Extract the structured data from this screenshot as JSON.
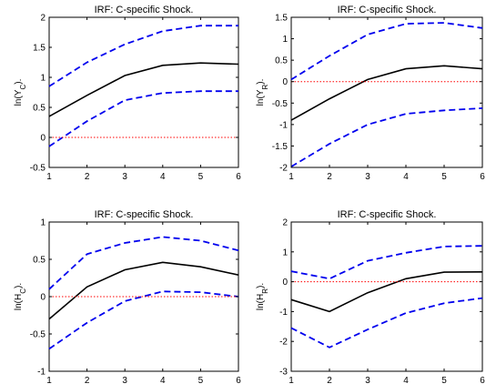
{
  "chart_data": [
    {
      "type": "line",
      "title": "IRF:  C-specific Shock.",
      "ylabel": "ln(Y_C).",
      "ylabel_base": "ln(Y",
      "ylabel_sub": "C",
      "ylabel_tail": ").",
      "x": [
        1,
        2,
        3,
        4,
        5,
        6
      ],
      "xlim": [
        1,
        6
      ],
      "ylim": [
        -0.5,
        2
      ],
      "xticks": [
        "1",
        "2",
        "3",
        "4",
        "5",
        "6"
      ],
      "yticks": [
        "-0.5",
        "0",
        "0.5",
        "1",
        "1.5",
        "2"
      ],
      "ytick_values": [
        -0.5,
        0,
        0.5,
        1,
        1.5,
        2
      ],
      "series": [
        {
          "role": "upper",
          "values": [
            0.85,
            1.25,
            1.55,
            1.77,
            1.86,
            1.86
          ]
        },
        {
          "role": "median",
          "values": [
            0.35,
            0.7,
            1.03,
            1.2,
            1.24,
            1.22
          ]
        },
        {
          "role": "lower",
          "values": [
            -0.15,
            0.27,
            0.62,
            0.74,
            0.77,
            0.77
          ]
        },
        {
          "role": "zero",
          "values": [
            0,
            0,
            0,
            0,
            0,
            0
          ]
        }
      ]
    },
    {
      "type": "line",
      "title": "IRF:  C-specific Shock.",
      "ylabel": "ln(Y_R).",
      "ylabel_base": "ln(Y",
      "ylabel_sub": "R",
      "ylabel_tail": ").",
      "x": [
        1,
        2,
        3,
        4,
        5,
        6
      ],
      "xlim": [
        1,
        6
      ],
      "ylim": [
        -2,
        1.5
      ],
      "xticks": [
        "1",
        "2",
        "3",
        "4",
        "5",
        "6"
      ],
      "yticks": [
        "-2",
        "-1.5",
        "-1",
        "-0.5",
        "0",
        "0.5",
        "1",
        "1.5"
      ],
      "ytick_values": [
        -2,
        -1.5,
        -1,
        -0.5,
        0,
        0.5,
        1,
        1.5
      ],
      "series": [
        {
          "role": "upper",
          "values": [
            0.05,
            0.6,
            1.1,
            1.35,
            1.37,
            1.25
          ]
        },
        {
          "role": "median",
          "values": [
            -0.9,
            -0.4,
            0.05,
            0.3,
            0.37,
            0.3
          ]
        },
        {
          "role": "lower",
          "values": [
            -1.98,
            -1.45,
            -1.0,
            -0.75,
            -0.67,
            -0.62
          ]
        },
        {
          "role": "zero",
          "values": [
            0,
            0,
            0,
            0,
            0,
            0
          ]
        }
      ]
    },
    {
      "type": "line",
      "title": "IRF:  C-specific Shock.",
      "ylabel": "ln(H_C).",
      "ylabel_base": "ln(H",
      "ylabel_sub": "C",
      "ylabel_tail": ").",
      "x": [
        1,
        2,
        3,
        4,
        5,
        6
      ],
      "xlim": [
        1,
        6
      ],
      "ylim": [
        -1,
        1
      ],
      "xticks": [
        "1",
        "2",
        "3",
        "4",
        "5",
        "6"
      ],
      "yticks": [
        "-1",
        "-0.5",
        "0",
        "0.5",
        "1"
      ],
      "ytick_values": [
        -1,
        -0.5,
        0,
        0.5,
        1
      ],
      "series": [
        {
          "role": "upper",
          "values": [
            0.1,
            0.57,
            0.72,
            0.8,
            0.75,
            0.62
          ]
        },
        {
          "role": "median",
          "values": [
            -0.3,
            0.13,
            0.36,
            0.46,
            0.4,
            0.29
          ]
        },
        {
          "role": "lower",
          "values": [
            -0.7,
            -0.35,
            -0.06,
            0.07,
            0.06,
            0.0
          ]
        },
        {
          "role": "zero",
          "values": [
            0,
            0,
            0,
            0,
            0,
            0
          ]
        }
      ]
    },
    {
      "type": "line",
      "title": "IRF:  C-specific Shock.",
      "ylabel": "ln(H_R).",
      "ylabel_base": "ln(H",
      "ylabel_sub": "R",
      "ylabel_tail": ").",
      "x": [
        1,
        2,
        3,
        4,
        5,
        6
      ],
      "xlim": [
        1,
        6
      ],
      "ylim": [
        -3,
        2
      ],
      "xticks": [
        "1",
        "2",
        "3",
        "4",
        "5",
        "6"
      ],
      "yticks": [
        "-3",
        "-2",
        "-1",
        "0",
        "1",
        "2"
      ],
      "ytick_values": [
        -3,
        -2,
        -1,
        0,
        1,
        2
      ],
      "series": [
        {
          "role": "upper",
          "values": [
            0.35,
            0.1,
            0.7,
            0.97,
            1.18,
            1.2
          ]
        },
        {
          "role": "median",
          "values": [
            -0.6,
            -1.0,
            -0.37,
            0.1,
            0.32,
            0.33
          ]
        },
        {
          "role": "lower",
          "values": [
            -1.55,
            -2.2,
            -1.6,
            -1.05,
            -0.72,
            -0.55
          ]
        },
        {
          "role": "zero",
          "values": [
            0,
            0,
            0,
            0,
            0,
            0
          ]
        }
      ]
    }
  ],
  "colors": {
    "band": "#0000ee",
    "median": "#000000",
    "zero": "#ff0000",
    "axis": "#000000"
  }
}
